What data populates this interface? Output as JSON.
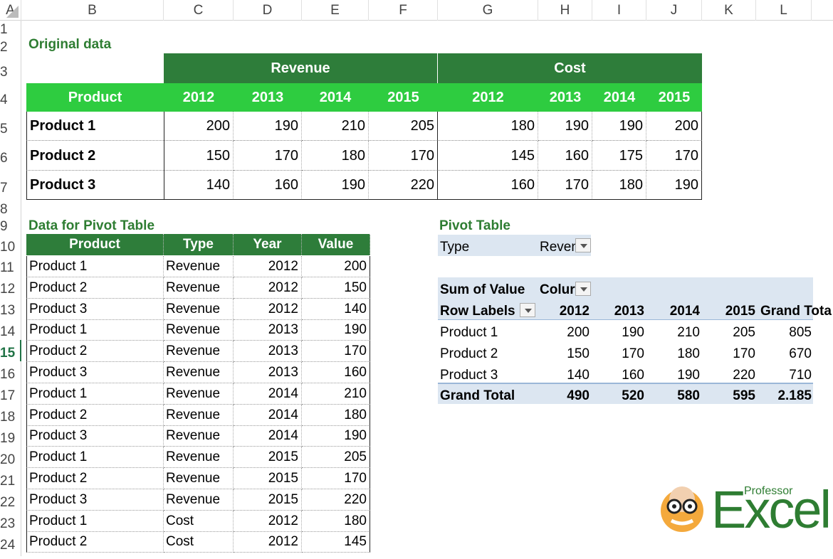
{
  "columns": [
    "A",
    "B",
    "C",
    "D",
    "E",
    "F",
    "G",
    "H",
    "I",
    "J",
    "K",
    "L"
  ],
  "rows": [
    "1",
    "2",
    "3",
    "4",
    "5",
    "6",
    "7",
    "8",
    "9",
    "10",
    "11",
    "12",
    "13",
    "14",
    "15",
    "16",
    "17",
    "18",
    "19",
    "20",
    "21",
    "22",
    "23",
    "24"
  ],
  "selected_row": "15",
  "original": {
    "heading": "Original data",
    "revenue_label": "Revenue",
    "cost_label": "Cost",
    "product_header": "Product",
    "years": [
      "2012",
      "2013",
      "2014",
      "2015",
      "2012",
      "2013",
      "2014",
      "2015"
    ],
    "products": [
      {
        "name": "Product 1",
        "values": [
          "200",
          "190",
          "210",
          "205",
          "180",
          "190",
          "190",
          "200"
        ]
      },
      {
        "name": "Product 2",
        "values": [
          "150",
          "170",
          "180",
          "170",
          "145",
          "160",
          "175",
          "170"
        ]
      },
      {
        "name": "Product 3",
        "values": [
          "140",
          "160",
          "190",
          "220",
          "160",
          "170",
          "180",
          "190"
        ]
      }
    ]
  },
  "pivot_data": {
    "heading": "Data for Pivot Table",
    "headers": [
      "Product",
      "Type",
      "Year",
      "Value"
    ],
    "rows": [
      [
        "Product 1",
        "Revenue",
        "2012",
        "200"
      ],
      [
        "Product 2",
        "Revenue",
        "2012",
        "150"
      ],
      [
        "Product 3",
        "Revenue",
        "2012",
        "140"
      ],
      [
        "Product 1",
        "Revenue",
        "2013",
        "190"
      ],
      [
        "Product 2",
        "Revenue",
        "2013",
        "170"
      ],
      [
        "Product 3",
        "Revenue",
        "2013",
        "160"
      ],
      [
        "Product 1",
        "Revenue",
        "2014",
        "210"
      ],
      [
        "Product 2",
        "Revenue",
        "2014",
        "180"
      ],
      [
        "Product 3",
        "Revenue",
        "2014",
        "190"
      ],
      [
        "Product 1",
        "Revenue",
        "2015",
        "205"
      ],
      [
        "Product 2",
        "Revenue",
        "2015",
        "170"
      ],
      [
        "Product 3",
        "Revenue",
        "2015",
        "220"
      ],
      [
        "Product 1",
        "Cost",
        "2012",
        "180"
      ],
      [
        "Product 2",
        "Cost",
        "2012",
        "145"
      ]
    ]
  },
  "pivot": {
    "heading": "Pivot Table",
    "filter_label": "Type",
    "filter_value": "Reven",
    "sum_label": "Sum of Value",
    "col_label": "Colur",
    "row_labels": "Row Labels",
    "col_years": [
      "2012",
      "2013",
      "2014",
      "2015"
    ],
    "grand_total_col": "Grand Tota",
    "rows": [
      {
        "label": "Product 1",
        "values": [
          "200",
          "190",
          "210",
          "205",
          "805"
        ]
      },
      {
        "label": "Product 2",
        "values": [
          "150",
          "170",
          "180",
          "170",
          "670"
        ]
      },
      {
        "label": "Product 3",
        "values": [
          "140",
          "160",
          "190",
          "220",
          "710"
        ]
      }
    ],
    "grand_total": {
      "label": "Grand Total",
      "values": [
        "490",
        "520",
        "580",
        "595",
        "2.185"
      ]
    }
  },
  "logo": {
    "small": "Professor",
    "big": "Excel"
  }
}
